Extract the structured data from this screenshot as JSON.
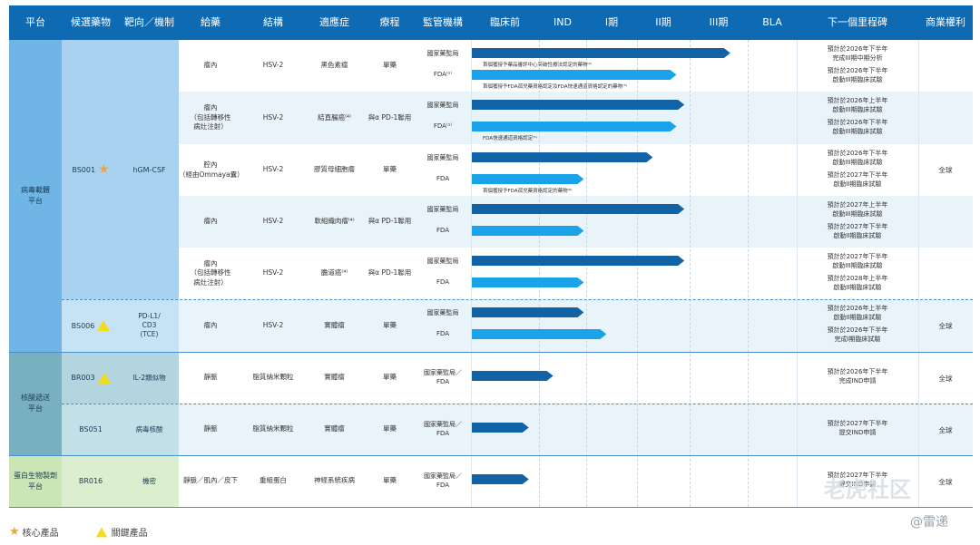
{
  "header": {
    "platform": "平台",
    "candidate": "候選藥物",
    "target": "靶向／機制",
    "route": "給藥",
    "structure": "結構",
    "indication": "適應症",
    "therapy": "療程",
    "regulator": "監管機構",
    "preclinical": "臨床前",
    "ind": "IND",
    "phase1": "I期",
    "phase2": "II期",
    "phase3": "III期",
    "bla": "BLA",
    "milestone": "下一個里程碑",
    "rights": "商業權利"
  },
  "platforms": {
    "viral": "病毒載體\n平台",
    "nucleic": "核酸遞送\n平台",
    "protein": "蛋白生物製劑\n平台"
  },
  "candidates": {
    "bs001": {
      "code": "BS001",
      "mech": "hGM-CSF"
    },
    "bs006": {
      "code": "BS006",
      "mech": "PD-L1/\nCD3\n(TCE)"
    },
    "br003": {
      "code": "BR003",
      "mech": "IL-2類似物"
    },
    "bs051": {
      "code": "BS051",
      "mech": "病毒核酸"
    },
    "br016": {
      "code": "BR016",
      "mech": "機密"
    }
  },
  "rows": [
    {
      "route": "瘤內",
      "structure": "HSV-2",
      "indication": "黑色素瘤",
      "therapy": "單藥",
      "agency1": "國家藥監局",
      "agency2": "FDA⁽¹⁾",
      "note1": "首個獲授予藥品審評中心突破性療法認定的藥物⁽²⁾",
      "note2": "首個獲授予FDA孤兒藥資格認定及FDA快速通道資格認定的藥物⁽³⁾",
      "ms1": "預計於2026年下半年\n完成III期中期分析",
      "ms2": "預計於2026年下半年\n啟動III期臨床試驗"
    },
    {
      "route": "瘤內\n（包括轉移性\n病灶注射）",
      "structure": "HSV-2",
      "indication": "結直腸癌⁽⁴⁾",
      "therapy": "與α PD-1聯用",
      "agency1": "國家藥監局",
      "agency2": "FDA⁽¹⁾",
      "note1": "",
      "note2": "FDA快速通道資格認定⁽⁵⁾",
      "ms1": "預計於2026年上半年\n啟動III期臨床試驗",
      "ms2": "預計於2026年下半年\n啟動III期臨床試驗"
    },
    {
      "route": "腔內\n（經由Ommaya囊）",
      "structure": "HSV-2",
      "indication": "膠質母細胞瘤",
      "therapy": "單藥",
      "agency1": "國家藥監局",
      "agency2": "FDA",
      "note1": "",
      "note2": "首個獲授予FDA孤兒藥資格認定的藥物⁽⁶⁾",
      "ms1": "預計於2026年下半年\n啟動III期臨床試驗",
      "ms2": "預計於2027年下半年\n啟動II期臨床試驗"
    },
    {
      "route": "瘤內",
      "structure": "HSV-2",
      "indication": "軟組織肉瘤⁽⁴⁾",
      "therapy": "與α PD-1聯用",
      "agency1": "國家藥監局",
      "agency2": "FDA",
      "note1": "",
      "note2": "",
      "ms1": "預計於2027年上半年\n啟動III期臨床試驗",
      "ms2": "預計於2027年下半年\n啟動II期臨床試驗"
    },
    {
      "route": "瘤內\n（包括轉移性\n病灶注射）",
      "structure": "HSV-2",
      "indication": "膽道癌⁽⁴⁾",
      "therapy": "與α PD-1聯用",
      "agency1": "國家藥監局",
      "agency2": "FDA",
      "note1": "",
      "note2": "",
      "ms1": "預計於2027年下半年\n啟動III期臨床試驗",
      "ms2": "預計於2028年上半年\n啟動II期臨床試驗"
    },
    {
      "route": "瘤內",
      "structure": "HSV-2",
      "indication": "實體瘤",
      "therapy": "單藥",
      "agency1": "國家藥監局",
      "agency2": "FDA",
      "note1": "",
      "note2": "",
      "ms1": "預計於2026年上半年\n啟動II期臨床試驗",
      "ms2": "預計於2026年下半年\n完成I期臨床試驗"
    },
    {
      "route": "靜脈",
      "structure": "脂質納米顆粒",
      "indication": "實體瘤",
      "therapy": "單藥",
      "agency1": "國家藥監局／\nFDA",
      "agency2": "",
      "note1": "",
      "note2": "",
      "ms1": "預計於2026年下半年\n完成IND申請",
      "ms2": ""
    },
    {
      "route": "靜脈",
      "structure": "脂質納米顆粒",
      "indication": "實體瘤",
      "therapy": "單藥",
      "agency1": "國家藥監局／\nFDA",
      "agency2": "",
      "note1": "",
      "note2": "",
      "ms1": "預計於2027年下半年\n提交IND申請",
      "ms2": ""
    },
    {
      "route": "靜脈／肌內／皮下",
      "structure": "重組蛋白",
      "indication": "神經系統疾病",
      "therapy": "單藥",
      "agency1": "國家藥監局／\nFDA",
      "agency2": "",
      "note1": "",
      "note2": "",
      "ms1": "預計於2027年下半年\n提交IND申請",
      "ms2": ""
    }
  ],
  "progress": {
    "comment": "bar lengths expressed as stage reached: 0=preclinical start, 1=IND, 2=Phase I, 3=Phase II, 4=Phase III, 5=BLA",
    "rows": [
      [
        4.7,
        3.75
      ],
      [
        3.9,
        3.75
      ],
      [
        3.3,
        1.95
      ],
      [
        3.9,
        1.95
      ],
      [
        3.9,
        1.95
      ],
      [
        1.95,
        2.4
      ],
      [
        1.3
      ],
      [
        0.85
      ],
      [
        0.85
      ]
    ]
  },
  "rights": {
    "global": "全球"
  },
  "legend": {
    "core": "核心產品",
    "key": "關鍵產品"
  },
  "watermark": {
    "tiger": "老虎社区",
    "user": "@雷递"
  },
  "colors": {
    "header": "#0d6ab3",
    "viral": "#6fb6e6",
    "nucleic": "#78b0c2",
    "protein": "#c9e6b4",
    "barDark": "#1262a6",
    "barLight": "#1aa3e8"
  }
}
